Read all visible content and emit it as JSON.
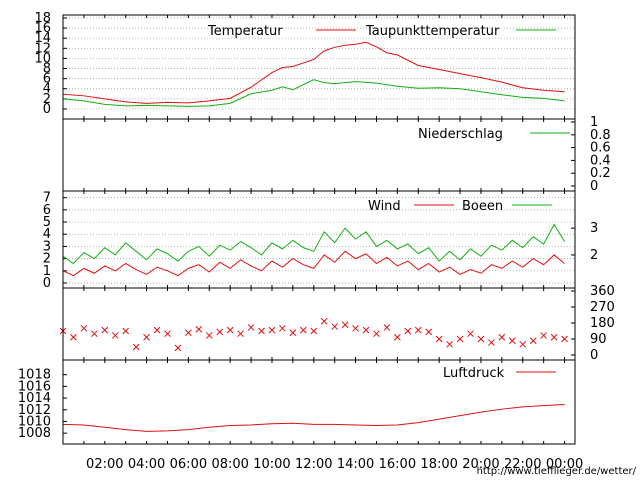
{
  "chart_data": {
    "type": "line",
    "x_ticks": [
      "02:00",
      "04:00",
      "06:00",
      "08:00",
      "10:00",
      "12:00",
      "14:00",
      "16:00",
      "18:00",
      "20:00",
      "22:00",
      "00:00"
    ],
    "footer_url": "http://www.tiefflieger.de/wetter/",
    "panels": [
      {
        "id": "temperature",
        "ylim": [
          -1,
          18
        ],
        "left_ticks": [
          "0",
          "2",
          "4",
          "6",
          "8",
          "10",
          "12",
          "14",
          "16",
          "18"
        ],
        "left_tick_values": [
          0,
          2,
          4,
          6,
          8,
          10,
          12,
          14,
          16,
          18
        ],
        "right_ticks": [],
        "right_tick_values": [],
        "dashed_grid": true,
        "series": [
          {
            "name": "Temperatur",
            "color": "#e01010",
            "style": "line",
            "x": [
              0,
              1,
              2,
              3,
              4,
              5,
              6,
              7,
              8,
              9,
              10,
              10.5,
              11,
              12,
              12.5,
              13,
              13.5,
              14,
              14.5,
              15,
              15.5,
              16,
              17,
              18,
              19,
              20,
              21,
              22,
              23,
              24
            ],
            "y": [
              2.9,
              2.6,
              2.0,
              1.4,
              1.1,
              1.3,
              1.2,
              1.6,
              2.1,
              4.3,
              7.2,
              8.2,
              8.4,
              9.8,
              11.5,
              12.2,
              12.6,
              12.8,
              13.2,
              12.3,
              11.1,
              10.7,
              8.6,
              7.8,
              7.0,
              6.2,
              5.3,
              4.2,
              3.7,
              3.4
            ]
          },
          {
            "name": "Taupunkttemperatur",
            "color": "#10b010",
            "style": "line",
            "x": [
              0,
              1,
              2,
              3,
              4,
              5,
              6,
              7,
              8,
              9,
              10,
              10.5,
              11,
              12,
              12.5,
              13,
              14,
              15,
              16,
              17,
              18,
              19,
              20,
              21,
              22,
              23,
              24
            ],
            "y": [
              2.0,
              1.6,
              0.9,
              0.6,
              0.7,
              0.6,
              0.5,
              0.6,
              1.1,
              3.0,
              3.7,
              4.4,
              3.8,
              5.8,
              5.2,
              5.0,
              5.4,
              5.1,
              4.5,
              4.1,
              4.2,
              4.0,
              3.4,
              2.8,
              2.3,
              2.1,
              1.6
            ]
          }
        ]
      },
      {
        "id": "precipitation",
        "ylim": [
          0,
          1
        ],
        "left_ticks": [],
        "left_tick_values": [],
        "right_ticks": [
          "0",
          "0.2",
          "0.4",
          "0.6",
          "0.8",
          "1"
        ],
        "right_tick_values": [
          0,
          0.2,
          0.4,
          0.6,
          0.8,
          1
        ],
        "dashed_grid": false,
        "series": [
          {
            "name": "Niederschlag",
            "color": "#10b010",
            "style": "line",
            "x": [],
            "y": []
          }
        ]
      },
      {
        "id": "wind",
        "ylim": [
          0,
          7.3
        ],
        "left_ticks": [
          "0",
          "1",
          "2",
          "3",
          "4",
          "5",
          "6",
          "7"
        ],
        "left_tick_values": [
          0,
          1,
          2,
          3,
          4,
          5,
          6,
          7
        ],
        "right_ticks": [
          "2",
          "3"
        ],
        "right_tick_values": [
          2.3,
          4.5
        ],
        "dashed_grid": true,
        "series": [
          {
            "name": "Wind",
            "color": "#e01010",
            "style": "line",
            "x": [
              0,
              0.5,
              1,
              1.5,
              2,
              2.5,
              3,
              3.5,
              4,
              4.5,
              5,
              5.5,
              6,
              6.5,
              7,
              7.5,
              8,
              8.5,
              9,
              9.5,
              10,
              10.5,
              11,
              11.5,
              12,
              12.5,
              13,
              13.5,
              14,
              14.5,
              15,
              15.5,
              16,
              16.5,
              17,
              17.5,
              18,
              18.5,
              19,
              19.5,
              20,
              20.5,
              21,
              21.5,
              22,
              22.5,
              23,
              23.5,
              24
            ],
            "y": [
              1.0,
              0.6,
              1.2,
              0.8,
              1.4,
              1.0,
              1.6,
              1.1,
              0.7,
              1.3,
              1.0,
              0.6,
              1.2,
              1.5,
              0.9,
              1.7,
              1.2,
              1.9,
              1.4,
              1.0,
              1.8,
              1.3,
              2.0,
              1.5,
              1.2,
              2.3,
              1.7,
              2.6,
              2.0,
              2.4,
              1.6,
              2.1,
              1.4,
              1.8,
              1.1,
              1.6,
              0.9,
              1.3,
              0.7,
              1.1,
              0.8,
              1.5,
              1.2,
              1.8,
              1.3,
              2.0,
              1.5,
              2.3,
              1.6
            ]
          },
          {
            "name": "Boeen",
            "color": "#10b010",
            "style": "line",
            "x": [
              0,
              0.5,
              1,
              1.5,
              2,
              2.5,
              3,
              3.5,
              4,
              4.5,
              5,
              5.5,
              6,
              6.5,
              7,
              7.5,
              8,
              8.5,
              9,
              9.5,
              10,
              10.5,
              11,
              11.5,
              12,
              12.5,
              13,
              13.5,
              14,
              14.5,
              15,
              15.5,
              16,
              16.5,
              17,
              17.5,
              18,
              18.5,
              19,
              19.5,
              20,
              20.5,
              21,
              21.5,
              22,
              22.5,
              23,
              23.5,
              24
            ],
            "y": [
              2.2,
              1.6,
              2.5,
              2.0,
              2.9,
              2.3,
              3.3,
              2.6,
              1.9,
              2.8,
              2.4,
              1.8,
              2.6,
              3.0,
              2.2,
              3.1,
              2.7,
              3.4,
              2.9,
              2.3,
              3.3,
              2.8,
              3.5,
              2.9,
              2.6,
              4.2,
              3.3,
              4.5,
              3.6,
              4.2,
              3.0,
              3.5,
              2.8,
              3.2,
              2.4,
              2.9,
              1.8,
              2.6,
              1.9,
              2.8,
              2.2,
              3.1,
              2.7,
              3.5,
              2.9,
              3.8,
              3.2,
              4.8,
              3.4
            ]
          }
        ]
      },
      {
        "id": "wind-direction",
        "ylim": [
          0,
          360
        ],
        "left_ticks": [],
        "left_tick_values": [],
        "right_ticks": [
          "0",
          "90",
          "180",
          "270",
          "360"
        ],
        "right_tick_values": [
          0,
          90,
          180,
          270,
          360
        ],
        "dashed_grid": false,
        "series": [
          {
            "name": "",
            "color": "#e01010",
            "style": "x-marker",
            "x": [
              0,
              0.5,
              1,
              1.5,
              2,
              2.5,
              3,
              3.5,
              4,
              4.5,
              5,
              5.5,
              6,
              6.5,
              7,
              7.5,
              8,
              8.5,
              9,
              9.5,
              10,
              10.5,
              11,
              11.5,
              12,
              12.5,
              13,
              13.5,
              14,
              14.5,
              15,
              15.5,
              16,
              16.5,
              17,
              17.5,
              18,
              18.5,
              19,
              19.5,
              20,
              20.5,
              21,
              21.5,
              22,
              22.5,
              23,
              23.5,
              24
            ],
            "y": [
              135,
              100,
              150,
              120,
              140,
              110,
              135,
              45,
              100,
              140,
              120,
              40,
              125,
              145,
              110,
              130,
              140,
              120,
              155,
              135,
              140,
              150,
              125,
              140,
              135,
              190,
              160,
              170,
              150,
              140,
              120,
              155,
              100,
              135,
              140,
              130,
              90,
              60,
              90,
              120,
              90,
              70,
              100,
              80,
              60,
              80,
              110,
              100,
              90
            ]
          }
        ]
      },
      {
        "id": "pressure",
        "ylim": [
          1007,
          1020
        ],
        "left_ticks": [
          "1008",
          "1010",
          "1012",
          "1014",
          "1016",
          "1018"
        ],
        "left_tick_values": [
          1008,
          1010,
          1012,
          1014,
          1016,
          1018
        ],
        "right_ticks": [],
        "right_tick_values": [],
        "dashed_grid": false,
        "series": [
          {
            "name": "Luftdruck",
            "color": "#e01010",
            "style": "line",
            "x": [
              0,
              1,
              2,
              3,
              4,
              5,
              6,
              7,
              8,
              9,
              10,
              11,
              12,
              13,
              14,
              15,
              16,
              17,
              18,
              19,
              20,
              21,
              22,
              23,
              24
            ],
            "y": [
              1009.5,
              1009.4,
              1009.0,
              1008.6,
              1008.3,
              1008.4,
              1008.6,
              1009.0,
              1009.3,
              1009.4,
              1009.6,
              1009.7,
              1009.5,
              1009.5,
              1009.4,
              1009.3,
              1009.4,
              1009.8,
              1010.4,
              1011.0,
              1011.6,
              1012.1,
              1012.5,
              1012.7,
              1012.9
            ]
          }
        ]
      }
    ]
  }
}
